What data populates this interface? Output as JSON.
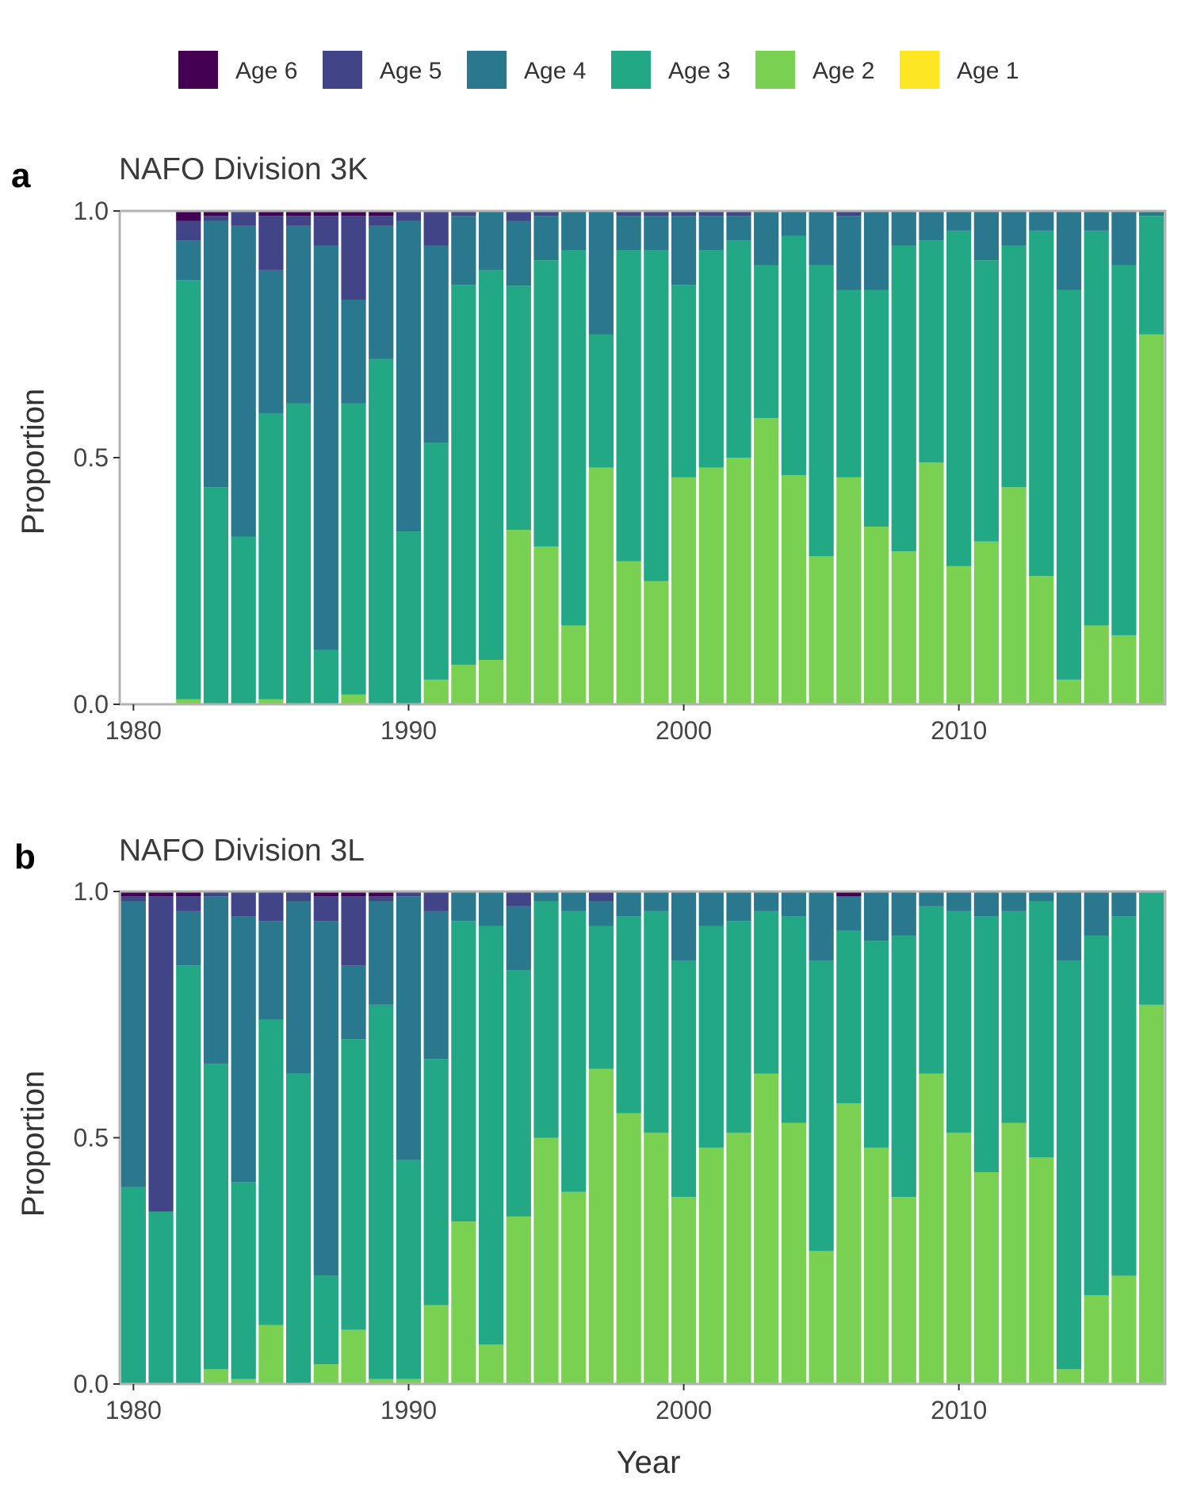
{
  "legend": {
    "items": [
      {
        "label": "Age 6",
        "color": "#440154"
      },
      {
        "label": "Age 5",
        "color": "#414487"
      },
      {
        "label": "Age 4",
        "color": "#2A788E"
      },
      {
        "label": "Age 3",
        "color": "#22A884"
      },
      {
        "label": "Age 2",
        "color": "#7AD151"
      },
      {
        "label": "Age 1",
        "color": "#FDE725"
      }
    ]
  },
  "shared_axes": {
    "xlabel": "Year",
    "ylabel": "Proportion"
  },
  "panels": [
    {
      "tag": "a",
      "title": "NAFO Division 3K"
    },
    {
      "tag": "b",
      "title": "NAFO Division 3L"
    }
  ],
  "chart_data": [
    {
      "type": "bar",
      "stacked": true,
      "title": "NAFO Division 3K",
      "panel_tag": "a",
      "xlabel": "",
      "ylabel": "Proportion",
      "xlim": [
        1979.5,
        2017.5
      ],
      "ylim": [
        0,
        1
      ],
      "xticks": [
        {
          "value": 1980,
          "label": "1980"
        },
        {
          "value": 1990,
          "label": "1990"
        },
        {
          "value": 2000,
          "label": "2000"
        },
        {
          "value": 2010,
          "label": "2010"
        }
      ],
      "yticks": [
        {
          "value": 0,
          "label": "0.0"
        },
        {
          "value": 0.5,
          "label": "0.5"
        },
        {
          "value": 1,
          "label": "1.0"
        }
      ],
      "x": [
        1982,
        1983,
        1984,
        1985,
        1986,
        1987,
        1988,
        1989,
        1990,
        1991,
        1992,
        1993,
        1994,
        1995,
        1996,
        1997,
        1998,
        1999,
        2000,
        2001,
        2002,
        2003,
        2004,
        2005,
        2006,
        2007,
        2008,
        2009,
        2010,
        2011,
        2012,
        2013,
        2014,
        2015,
        2016,
        2017
      ],
      "series": [
        {
          "name": "Age 2",
          "values": [
            0.01,
            0,
            0,
            0.01,
            0,
            0,
            0.02,
            0,
            0,
            0.05,
            0.08,
            0.09,
            0.35,
            0.32,
            0.16,
            0.48,
            0.29,
            0.25,
            0.46,
            0.48,
            0.5,
            0.58,
            0.46,
            0.3,
            0.46,
            0.36,
            0.31,
            0.49,
            0.28,
            0.33,
            0.44,
            0.26,
            0.05,
            0.16,
            0.14,
            0.75
          ]
        },
        {
          "name": "Age 3",
          "values": [
            0.85,
            0.44,
            0.34,
            0.58,
            0.61,
            0.11,
            0.59,
            0.7,
            0.35,
            0.48,
            0.77,
            0.79,
            0.49,
            0.58,
            0.76,
            0.27,
            0.63,
            0.67,
            0.39,
            0.44,
            0.44,
            0.31,
            0.48,
            0.59,
            0.38,
            0.48,
            0.62,
            0.45,
            0.68,
            0.57,
            0.49,
            0.7,
            0.79,
            0.8,
            0.75,
            0.24
          ]
        },
        {
          "name": "Age 4",
          "values": [
            0.08,
            0.54,
            0.63,
            0.29,
            0.36,
            0.82,
            0.21,
            0.27,
            0.63,
            0.4,
            0.14,
            0.12,
            0.13,
            0.09,
            0.08,
            0.25,
            0.07,
            0.07,
            0.14,
            0.07,
            0.05,
            0.11,
            0.05,
            0.11,
            0.15,
            0.16,
            0.07,
            0.06,
            0.04,
            0.1,
            0.07,
            0.04,
            0.16,
            0.04,
            0.11,
            0.01
          ]
        },
        {
          "name": "Age 5",
          "values": [
            0.04,
            0.01,
            0.03,
            0.11,
            0.02,
            0.06,
            0.17,
            0.02,
            0.02,
            0.07,
            0.01,
            0,
            0.02,
            0.01,
            0,
            0,
            0.01,
            0.01,
            0.01,
            0.01,
            0.01,
            0,
            0,
            0,
            0.01,
            0,
            0,
            0,
            0,
            0,
            0,
            0,
            0,
            0,
            0,
            0
          ]
        },
        {
          "name": "Age 6",
          "values": [
            0.02,
            0.01,
            0,
            0.01,
            0.01,
            0.01,
            0.01,
            0.01,
            0,
            0,
            0,
            0,
            0,
            0,
            0,
            0,
            0,
            0,
            0,
            0,
            0,
            0,
            0,
            0,
            0,
            0,
            0,
            0,
            0,
            0,
            0,
            0,
            0,
            0,
            0,
            0
          ]
        },
        {
          "name": "Age 1",
          "values": [
            0,
            0,
            0,
            0,
            0,
            0,
            0,
            0,
            0,
            0,
            0,
            0,
            0,
            0,
            0,
            0,
            0,
            0,
            0,
            0,
            0,
            0,
            0,
            0,
            0,
            0,
            0,
            0,
            0,
            0,
            0,
            0,
            0,
            0,
            0,
            0
          ]
        }
      ]
    },
    {
      "type": "bar",
      "stacked": true,
      "title": "NAFO Division 3L",
      "panel_tag": "b",
      "xlabel": "Year",
      "ylabel": "Proportion",
      "xlim": [
        1979.5,
        2017.5
      ],
      "ylim": [
        0,
        1
      ],
      "xticks": [
        {
          "value": 1980,
          "label": "1980"
        },
        {
          "value": 1990,
          "label": "1990"
        },
        {
          "value": 2000,
          "label": "2000"
        },
        {
          "value": 2010,
          "label": "2010"
        }
      ],
      "yticks": [
        {
          "value": 0,
          "label": "0.0"
        },
        {
          "value": 0.5,
          "label": "0.5"
        },
        {
          "value": 1,
          "label": "1.0"
        }
      ],
      "x": [
        1980,
        1981,
        1982,
        1983,
        1984,
        1985,
        1986,
        1987,
        1988,
        1989,
        1990,
        1991,
        1992,
        1993,
        1994,
        1995,
        1996,
        1997,
        1998,
        1999,
        2000,
        2001,
        2002,
        2003,
        2004,
        2005,
        2006,
        2007,
        2008,
        2009,
        2010,
        2011,
        2012,
        2013,
        2014,
        2015,
        2016,
        2017
      ],
      "series": [
        {
          "name": "Age 2",
          "values": [
            0,
            0,
            0,
            0.03,
            0.01,
            0.12,
            0,
            0.04,
            0.11,
            0.01,
            0.01,
            0.16,
            0.33,
            0.08,
            0.34,
            0.5,
            0.39,
            0.64,
            0.55,
            0.51,
            0.38,
            0.48,
            0.51,
            0.63,
            0.53,
            0.27,
            0.57,
            0.48,
            0.38,
            0.63,
            0.51,
            0.43,
            0.53,
            0.46,
            0.03,
            0.18,
            0.22,
            0.77
          ]
        },
        {
          "name": "Age 3",
          "values": [
            0.4,
            0.35,
            0.85,
            0.62,
            0.4,
            0.62,
            0.63,
            0.18,
            0.59,
            0.76,
            0.44,
            0.5,
            0.61,
            0.85,
            0.5,
            0.48,
            0.57,
            0.29,
            0.4,
            0.45,
            0.48,
            0.45,
            0.43,
            0.33,
            0.42,
            0.59,
            0.35,
            0.42,
            0.53,
            0.34,
            0.45,
            0.52,
            0.43,
            0.52,
            0.83,
            0.73,
            0.73,
            0.23
          ]
        },
        {
          "name": "Age 4",
          "values": [
            0.58,
            0.0,
            0.11,
            0.34,
            0.54,
            0.2,
            0.35,
            0.72,
            0.15,
            0.21,
            0.53,
            0.3,
            0.06,
            0.07,
            0.13,
            0.02,
            0.04,
            0.05,
            0.05,
            0.04,
            0.14,
            0.07,
            0.06,
            0.04,
            0.05,
            0.14,
            0.07,
            0.1,
            0.09,
            0.03,
            0.04,
            0.05,
            0.04,
            0.02,
            0.14,
            0.09,
            0.05,
            0
          ]
        },
        {
          "name": "Age 5",
          "values": [
            0.01,
            0.64,
            0.03,
            0.01,
            0.05,
            0.06,
            0.02,
            0.05,
            0.14,
            0.01,
            0.01,
            0.04,
            0,
            0,
            0.03,
            0,
            0,
            0.02,
            0,
            0,
            0,
            0,
            0,
            0,
            0,
            0,
            0,
            0,
            0,
            0,
            0,
            0,
            0,
            0,
            0,
            0,
            0,
            0
          ]
        },
        {
          "name": "Age 6",
          "values": [
            0.01,
            0.01,
            0.01,
            0,
            0,
            0,
            0,
            0.01,
            0.01,
            0.01,
            0,
            0,
            0,
            0,
            0,
            0,
            0,
            0,
            0,
            0,
            0,
            0,
            0,
            0,
            0,
            0,
            0.01,
            0,
            0,
            0,
            0,
            0,
            0,
            0,
            0,
            0,
            0,
            0
          ]
        },
        {
          "name": "Age 1",
          "values": [
            0,
            0,
            0,
            0,
            0,
            0,
            0,
            0,
            0,
            0,
            0,
            0,
            0,
            0,
            0,
            0,
            0,
            0,
            0,
            0,
            0,
            0,
            0,
            0,
            0,
            0,
            0,
            0,
            0,
            0,
            0,
            0,
            0,
            0,
            0,
            0,
            0,
            0
          ]
        }
      ]
    }
  ]
}
